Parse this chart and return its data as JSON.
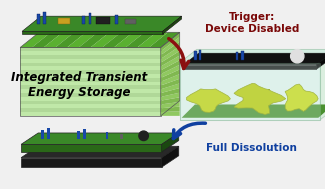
{
  "bg_color": "#f0f0f0",
  "panel1": {
    "label": "Integrated Transient\nEnergy Storage",
    "label_color": "#000000",
    "label_fontsize": 8.5,
    "label_fontweight": "bold",
    "front_color": "#c8e8b0",
    "front_stripe_color": "#b0d898",
    "top_color": "#5ab030",
    "side_color": "#88c858",
    "pcb_top": "#3a7830",
    "pcb_side": "#2a5820"
  },
  "panel2": {
    "glass_front": "#d8f0e8",
    "glass_top": "#b8e8d0",
    "glass_side": "#c0ecd8",
    "pcb_top": "#181818",
    "pcb_side": "#101010",
    "dissolve_color": "#c0d010",
    "dissolve_edge": "#90a008",
    "floor_color": "#4a9030"
  },
  "panel3": {
    "pcb_top": "#3a7830",
    "pcb_side": "#2a5820",
    "sub_top": "#282828",
    "sub_side": "#181818",
    "label": "Full Dissolution",
    "label_color": "#1040a0",
    "label_fontsize": 7.5,
    "label_fontweight": "bold"
  },
  "trigger_label": "Trigger:\nDevice Disabled",
  "trigger_color": "#7a0808",
  "trigger_fontsize": 7.5,
  "arrow1_color": "#8b1010",
  "arrow2_color": "#1040a0"
}
